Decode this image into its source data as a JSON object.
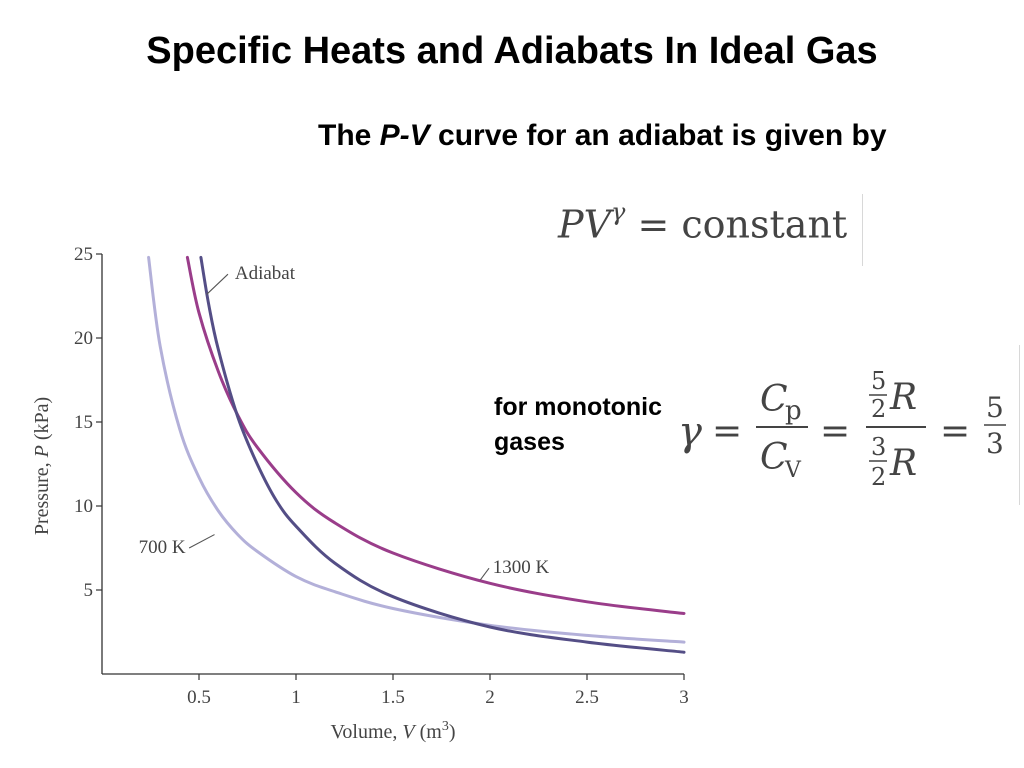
{
  "slide": {
    "title": "Specific Heats and Adiabats In Ideal Gas",
    "intro_before": "The ",
    "intro_var": "P-V",
    "intro_after": " curve for an adiabat is given by",
    "note": "for monotonic gases"
  },
  "equation_pv": {
    "lhs": "PV",
    "exponent": "γ",
    "equals": "=",
    "rhs": "constant"
  },
  "equation_gamma": {
    "symbol": "γ",
    "equals": "=",
    "num_C": "C",
    "num_sub": "p",
    "den_C": "C",
    "den_sub": "V",
    "frac1_num": "5",
    "frac1_den": "2",
    "frac2_num": "3",
    "frac2_den": "2",
    "R": "R",
    "result_num": "5",
    "result_den": "3"
  },
  "colors": {
    "line_700K": "#b3b0d9",
    "line_1300K": "#9a3d8a",
    "line_adiabat": "#544e86",
    "axis": "#333333",
    "text_gray": "#444444"
  },
  "chart_data": {
    "type": "line",
    "xlabel": "Volume, V (m³)",
    "ylabel": "Pressure, P (kPa)",
    "xlabel_parts": [
      "Volume, ",
      "V",
      " (m",
      "3",
      ")"
    ],
    "ylabel_parts": [
      "Pressure, ",
      "P",
      " (kPa)"
    ],
    "xlim": [
      0,
      3
    ],
    "ylim": [
      0,
      25
    ],
    "x_ticks": [
      0.5,
      1,
      1.5,
      2,
      2.5,
      3
    ],
    "x_tick_labels": [
      "0.5",
      "1",
      "1.5",
      "2",
      "2.5",
      "3"
    ],
    "y_ticks": [
      5,
      10,
      15,
      20,
      25
    ],
    "y_tick_labels": [
      "5",
      "10",
      "15",
      "20",
      "25"
    ],
    "grid": false,
    "series": [
      {
        "name": "700 K",
        "color": "#b3b0d9",
        "x": [
          0.24,
          0.3,
          0.4,
          0.5,
          0.6,
          0.7,
          0.8,
          1.0,
          1.2,
          1.5,
          2.0,
          2.5,
          3.0
        ],
        "y": [
          24.8,
          19.5,
          14.6,
          11.7,
          9.7,
          8.3,
          7.3,
          5.8,
          4.9,
          3.9,
          2.9,
          2.3,
          1.9
        ]
      },
      {
        "name": "1300 K",
        "color": "#9a3d8a",
        "x": [
          0.44,
          0.5,
          0.6,
          0.7,
          0.8,
          1.0,
          1.2,
          1.5,
          2.0,
          2.5,
          3.0
        ],
        "y": [
          24.8,
          21.5,
          18.0,
          15.4,
          13.5,
          10.8,
          9.0,
          7.2,
          5.4,
          4.3,
          3.6
        ]
      },
      {
        "name": "Adiabat",
        "color": "#544e86",
        "x": [
          0.51,
          0.55,
          0.6,
          0.7,
          0.8,
          0.9,
          1.0,
          1.2,
          1.5,
          2.0,
          2.5,
          3.0
        ],
        "y": [
          24.8,
          22.0,
          19.3,
          15.3,
          12.5,
          10.3,
          8.8,
          6.6,
          4.6,
          2.8,
          1.9,
          1.3
        ]
      }
    ],
    "annotations": [
      {
        "text": "Adiabat",
        "series": "Adiabat",
        "x": 0.84,
        "y": 23.5,
        "point_x": 0.54,
        "point_y": 22.6
      },
      {
        "text": "700 K",
        "series": "700 K",
        "x": 0.31,
        "y": 7.2,
        "point_x": 0.58,
        "point_y": 8.3
      },
      {
        "text": "1300 K",
        "series": "1300 K",
        "x": 2.16,
        "y": 6.0,
        "point_x": 1.95,
        "point_y": 5.6
      }
    ]
  }
}
